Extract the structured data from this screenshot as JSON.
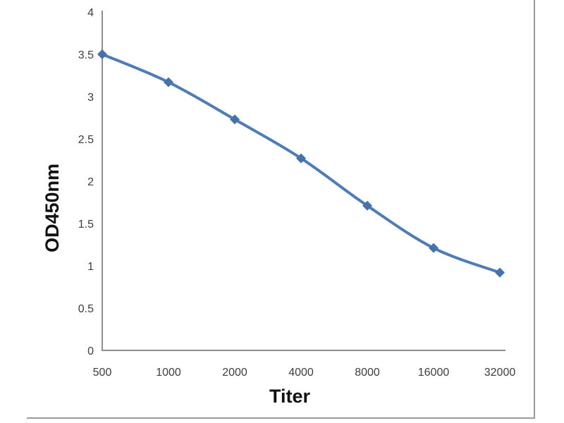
{
  "figure": {
    "background": "#ffffff",
    "border_color": "#9a9a9a"
  },
  "chart_data": {
    "type": "line",
    "smooth": true,
    "title": "",
    "xlabel": "Titer",
    "ylabel": "OD450nm",
    "categories": [
      "500",
      "1000",
      "2000",
      "4000",
      "8000",
      "16000",
      "32000"
    ],
    "series": [
      {
        "name": "OD450nm",
        "values": [
          3.5,
          3.17,
          2.73,
          2.27,
          1.71,
          1.21,
          0.92
        ]
      }
    ],
    "ylim": [
      0,
      4
    ],
    "ytick_labels": [
      "0",
      "0.5",
      "1",
      "1.5",
      "2",
      "2.5",
      "3",
      "3.5",
      "4"
    ],
    "ytick_values": [
      0,
      0.5,
      1,
      1.5,
      2,
      2.5,
      3,
      3.5,
      4
    ],
    "grid": false,
    "legend_position": "none",
    "marker": "diamond",
    "line_color": "#4d7cb6",
    "marker_color": "#4473ab",
    "axis_color": "#8e8e8e",
    "tick_label_color": "#3d3d3d"
  }
}
